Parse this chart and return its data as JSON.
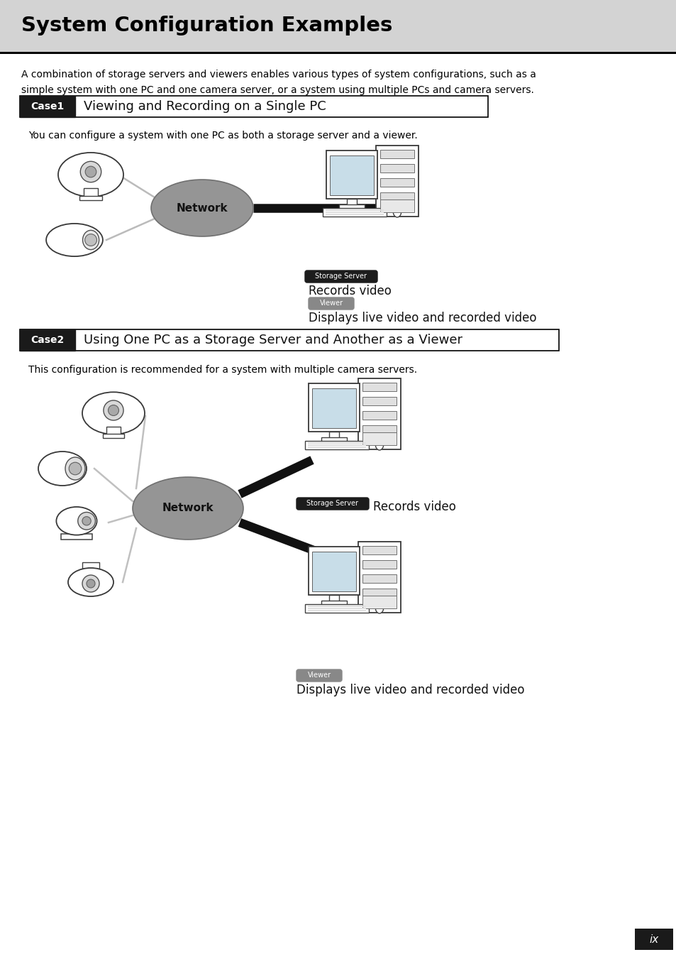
{
  "bg_color": "#ffffff",
  "header_bg": "#d0d0d0",
  "header_text": "System Configuration Examples",
  "header_text_color": "#000000",
  "header_font_size": 20,
  "intro_text": "A combination of storage servers and viewers enables various types of system configurations, such as a\nsimple system with one PC and one camera server, or a system using multiple PCs and camera servers.",
  "case1_label": "Case1",
  "case1_title": "Viewing and Recording on a Single PC",
  "case1_desc": "You can configure a system with one PC as both a storage server and a viewer.",
  "case2_label": "Case2",
  "case2_title": "Using One PC as a Storage Server and Another as a Viewer",
  "case2_desc": "This configuration is recommended for a system with multiple camera servers.",
  "network_text": "Network",
  "storage_server_badge_text": "Storage Server",
  "viewer_badge_text": "Viewer",
  "records_text": "Records video",
  "displays_text": "Displays live video and recorded video",
  "page_label": "ix"
}
